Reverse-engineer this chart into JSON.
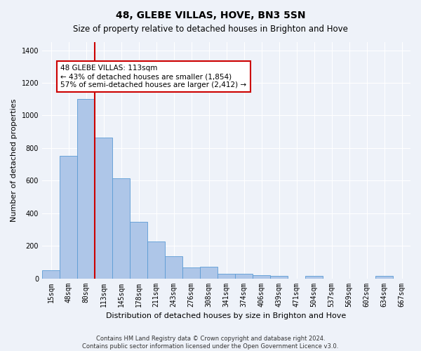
{
  "title": "48, GLEBE VILLAS, HOVE, BN3 5SN",
  "subtitle": "Size of property relative to detached houses in Brighton and Hove",
  "xlabel": "Distribution of detached houses by size in Brighton and Hove",
  "ylabel": "Number of detached properties",
  "footer_line1": "Contains HM Land Registry data © Crown copyright and database right 2024.",
  "footer_line2": "Contains public sector information licensed under the Open Government Licence v3.0.",
  "bar_labels": [
    "15sqm",
    "48sqm",
    "80sqm",
    "113sqm",
    "145sqm",
    "178sqm",
    "211sqm",
    "243sqm",
    "276sqm",
    "308sqm",
    "341sqm",
    "374sqm",
    "406sqm",
    "439sqm",
    "471sqm",
    "504sqm",
    "537sqm",
    "569sqm",
    "602sqm",
    "634sqm",
    "667sqm"
  ],
  "bar_values": [
    50,
    750,
    1100,
    865,
    615,
    345,
    225,
    135,
    65,
    70,
    30,
    30,
    20,
    15,
    0,
    15,
    0,
    0,
    0,
    15,
    0
  ],
  "bar_color": "#aec6e8",
  "bar_edge_color": "#5b9bd5",
  "vline_index": 3,
  "vline_color": "#cc0000",
  "annotation_text": "48 GLEBE VILLAS: 113sqm\n← 43% of detached houses are smaller (1,854)\n57% of semi-detached houses are larger (2,412) →",
  "annotation_box_color": "#cc0000",
  "ylim": [
    0,
    1450
  ],
  "yticks": [
    0,
    200,
    400,
    600,
    800,
    1000,
    1200,
    1400
  ],
  "background_color": "#eef2f9",
  "grid_color": "#ffffff",
  "title_fontsize": 10,
  "subtitle_fontsize": 8.5,
  "ylabel_fontsize": 8,
  "xlabel_fontsize": 8,
  "tick_fontsize": 7,
  "footer_fontsize": 6,
  "annotation_fontsize": 7.5
}
